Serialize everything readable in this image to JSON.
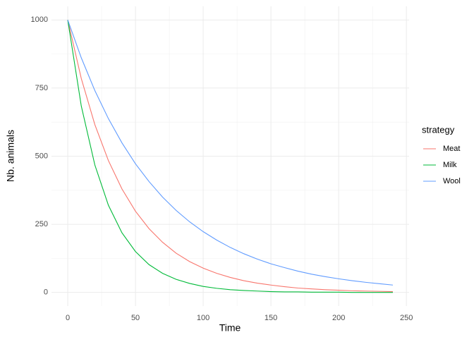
{
  "chart_data": {
    "type": "line",
    "x_label": "Time",
    "y_label": "Nb. animals",
    "x": [
      0,
      10,
      20,
      30,
      40,
      50,
      60,
      70,
      80,
      90,
      100,
      110,
      120,
      130,
      140,
      150,
      160,
      170,
      180,
      190,
      200,
      210,
      220,
      230,
      240
    ],
    "series": [
      {
        "name": "Meat",
        "color": "#F8766D",
        "values": [
          1000,
          785,
          616,
          484,
          380,
          298,
          234,
          184,
          144,
          113,
          89,
          70,
          55,
          43,
          34,
          27,
          21,
          16,
          13,
          10,
          8,
          6,
          5,
          4,
          3
        ]
      },
      {
        "name": "Milk",
        "color": "#00BA38",
        "values": [
          1000,
          684,
          468,
          320,
          219,
          150,
          102,
          70,
          48,
          33,
          22,
          15,
          10,
          7,
          5,
          3,
          2,
          2,
          1,
          1,
          1,
          0,
          0,
          0,
          0
        ]
      },
      {
        "name": "Wool",
        "color": "#619CFF",
        "values": [
          1000,
          861,
          741,
          638,
          549,
          472,
          407,
          350,
          301,
          259,
          223,
          192,
          165,
          142,
          122,
          105,
          91,
          78,
          67,
          58,
          50,
          43,
          37,
          32,
          27
        ]
      }
    ],
    "legend_title": "strategy",
    "legend": "right",
    "xlim": [
      -12,
      252
    ],
    "xticks": [
      0,
      50,
      100,
      150,
      200,
      250
    ],
    "ylim": [
      -50,
      1050
    ],
    "yticks": [
      0,
      250,
      500,
      750,
      1000
    ],
    "grid": true
  }
}
